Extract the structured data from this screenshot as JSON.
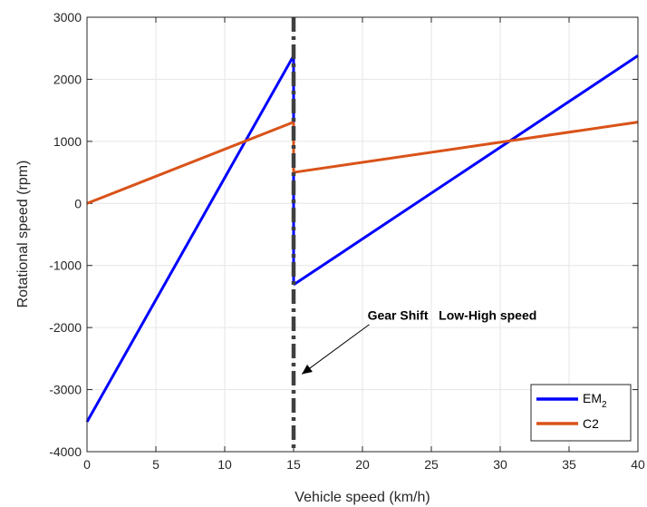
{
  "chart_data": {
    "type": "line",
    "xlabel": "Vehicle speed (km/h)",
    "ylabel": "Rotational speed (rpm)",
    "xlim": [
      0,
      40
    ],
    "ylim": [
      -4000,
      3000
    ],
    "xticks": [
      0,
      5,
      10,
      15,
      20,
      25,
      30,
      35,
      40
    ],
    "yticks": [
      -4000,
      -3000,
      -2000,
      -1000,
      0,
      1000,
      2000,
      3000
    ],
    "grid": true,
    "legend_position": "bottom-right",
    "series": [
      {
        "name": "EM",
        "name_subscript": "2",
        "color": "#0000ff",
        "segments": [
          [
            [
              0,
              -3520
            ],
            [
              15,
              2380
            ]
          ],
          [
            [
              15,
              2380
            ],
            [
              15,
              -1310
            ]
          ],
          [
            [
              15,
              -1310
            ],
            [
              40,
              2380
            ]
          ]
        ]
      },
      {
        "name": "C2",
        "color": "#d95319",
        "segments": [
          [
            [
              0,
              0
            ],
            [
              15,
              1310
            ]
          ],
          [
            [
              15,
              1310
            ],
            [
              15,
              500
            ]
          ],
          [
            [
              15,
              500
            ],
            [
              40,
              1310
            ]
          ]
        ]
      }
    ],
    "vertical_line": {
      "x": 15,
      "color": "#404040",
      "style": "dash-dot"
    },
    "annotation": {
      "text": "Gear Shift   Low-High speed",
      "arrow_to": [
        15.6,
        -2750
      ],
      "arrow_from": [
        20.5,
        -1950
      ]
    }
  }
}
